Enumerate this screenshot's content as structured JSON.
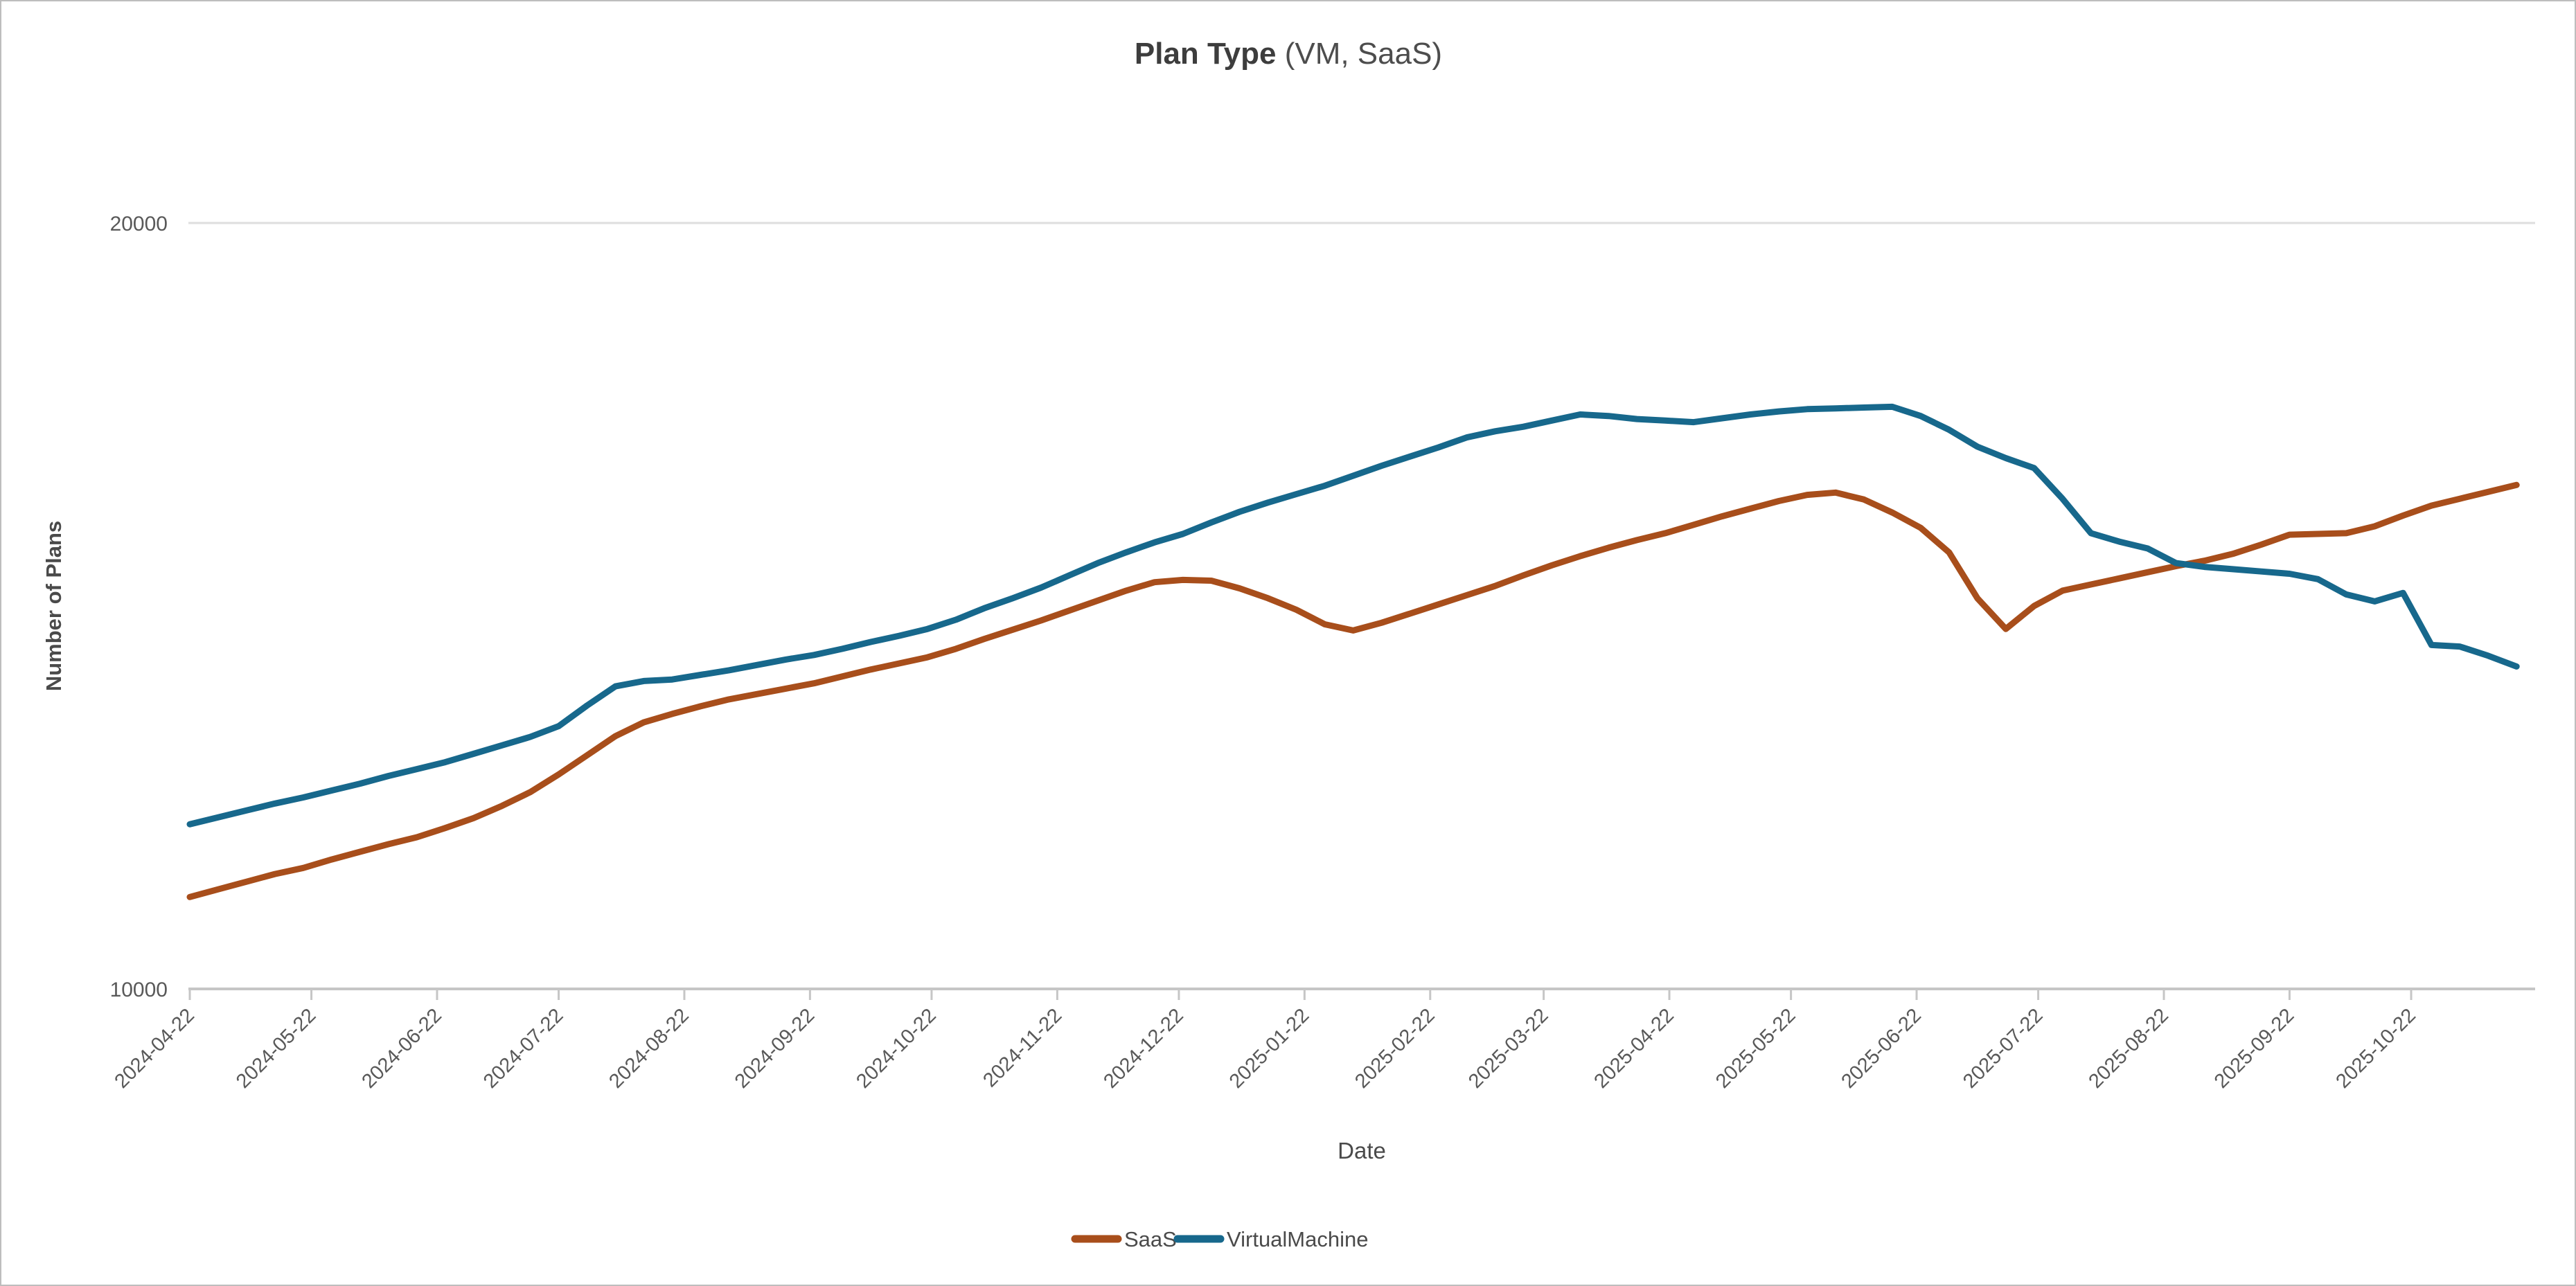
{
  "title": {
    "main": "Plan Type",
    "suffix": " (VM, SaaS)"
  },
  "axes": {
    "x_label": "Date",
    "y_label": "Number of Plans",
    "y_ticks": [
      "20000",
      "10000"
    ]
  },
  "legend": [
    {
      "label": "SaaS",
      "color": "#A84E1B"
    },
    {
      "label": "VirtualMachine",
      "color": "#17688C"
    }
  ],
  "chart_data": {
    "type": "line",
    "title": "Plan Type (VM, SaaS)",
    "xlabel": "Date",
    "ylabel": "Number of Plans",
    "ylim": [
      10000,
      20000
    ],
    "y_gridlines": [
      20000
    ],
    "legend_position": "bottom",
    "x_ticks": [
      "2024-04-22",
      "2024-05-22",
      "2024-06-22",
      "2024-07-22",
      "2024-08-22",
      "2024-09-22",
      "2024-10-22",
      "2024-11-22",
      "2024-12-22",
      "2025-01-22",
      "2025-02-22",
      "2025-03-22",
      "2025-04-22",
      "2025-05-22",
      "2025-06-22",
      "2025-07-22",
      "2025-08-22",
      "2025-09-22",
      "2025-10-22"
    ],
    "x": [
      "2024-04-22",
      "2024-04-29",
      "2024-05-06",
      "2024-05-13",
      "2024-05-20",
      "2024-05-27",
      "2024-06-03",
      "2024-06-10",
      "2024-06-17",
      "2024-06-24",
      "2024-07-01",
      "2024-07-08",
      "2024-07-15",
      "2024-07-22",
      "2024-07-29",
      "2024-08-05",
      "2024-08-12",
      "2024-08-19",
      "2024-08-26",
      "2024-09-02",
      "2024-09-09",
      "2024-09-16",
      "2024-09-23",
      "2024-09-30",
      "2024-10-07",
      "2024-10-14",
      "2024-10-21",
      "2024-10-28",
      "2024-11-04",
      "2024-11-11",
      "2024-11-18",
      "2024-11-25",
      "2024-12-02",
      "2024-12-09",
      "2024-12-16",
      "2024-12-23",
      "2024-12-30",
      "2025-01-06",
      "2025-01-13",
      "2025-01-20",
      "2025-01-27",
      "2025-02-03",
      "2025-02-10",
      "2025-02-17",
      "2025-02-24",
      "2025-03-03",
      "2025-03-10",
      "2025-03-17",
      "2025-03-24",
      "2025-03-31",
      "2025-04-07",
      "2025-04-14",
      "2025-04-21",
      "2025-04-28",
      "2025-05-05",
      "2025-05-12",
      "2025-05-19",
      "2025-05-26",
      "2025-06-02",
      "2025-06-09",
      "2025-06-16",
      "2025-06-23",
      "2025-06-30",
      "2025-07-07",
      "2025-07-14",
      "2025-07-21",
      "2025-07-28",
      "2025-08-04",
      "2025-08-11",
      "2025-08-18",
      "2025-08-25",
      "2025-09-01",
      "2025-09-08",
      "2025-09-15",
      "2025-09-22",
      "2025-09-29",
      "2025-10-06",
      "2025-10-13",
      "2025-10-20",
      "2025-10-27",
      "2025-11-03",
      "2025-11-10",
      "2025-11-17"
    ],
    "series": [
      {
        "name": "SaaS",
        "color": "#A84E1B",
        "values": [
          11200,
          11300,
          11400,
          11500,
          11580,
          11690,
          11790,
          11890,
          11980,
          12100,
          12230,
          12390,
          12570,
          12800,
          13050,
          13300,
          13480,
          13590,
          13690,
          13780,
          13850,
          13920,
          13990,
          14080,
          14170,
          14250,
          14330,
          14440,
          14570,
          14690,
          14810,
          14940,
          15070,
          15200,
          15310,
          15340,
          15330,
          15230,
          15100,
          14950,
          14760,
          14680,
          14780,
          14900,
          15020,
          15140,
          15260,
          15400,
          15530,
          15650,
          15760,
          15860,
          15950,
          16060,
          16170,
          16270,
          16370,
          16450,
          16480,
          16390,
          16220,
          16020,
          15700,
          15100,
          14700,
          15000,
          15200,
          15280,
          15360,
          15440,
          15520,
          15590,
          15680,
          15800,
          15930,
          15940,
          15950,
          16040,
          16180,
          16310,
          16400,
          16490,
          16580
        ]
      },
      {
        "name": "VirtualMachine",
        "color": "#17688C",
        "values": [
          12150,
          12240,
          12330,
          12420,
          12500,
          12590,
          12680,
          12780,
          12870,
          12960,
          13070,
          13180,
          13290,
          13430,
          13700,
          13950,
          14020,
          14040,
          14100,
          14160,
          14230,
          14300,
          14360,
          14440,
          14530,
          14610,
          14700,
          14820,
          14970,
          15100,
          15240,
          15400,
          15560,
          15700,
          15830,
          15940,
          16090,
          16230,
          16350,
          16460,
          16570,
          16700,
          16830,
          16950,
          17070,
          17200,
          17280,
          17340,
          17420,
          17500,
          17480,
          17440,
          17420,
          17400,
          17450,
          17500,
          17540,
          17570,
          17580,
          17590,
          17600,
          17480,
          17300,
          17080,
          16930,
          16800,
          16400,
          15950,
          15840,
          15750,
          15560,
          15510,
          15480,
          15450,
          15420,
          15350,
          15150,
          15060,
          15170,
          14490,
          14470,
          14350,
          14210
        ]
      }
    ]
  }
}
